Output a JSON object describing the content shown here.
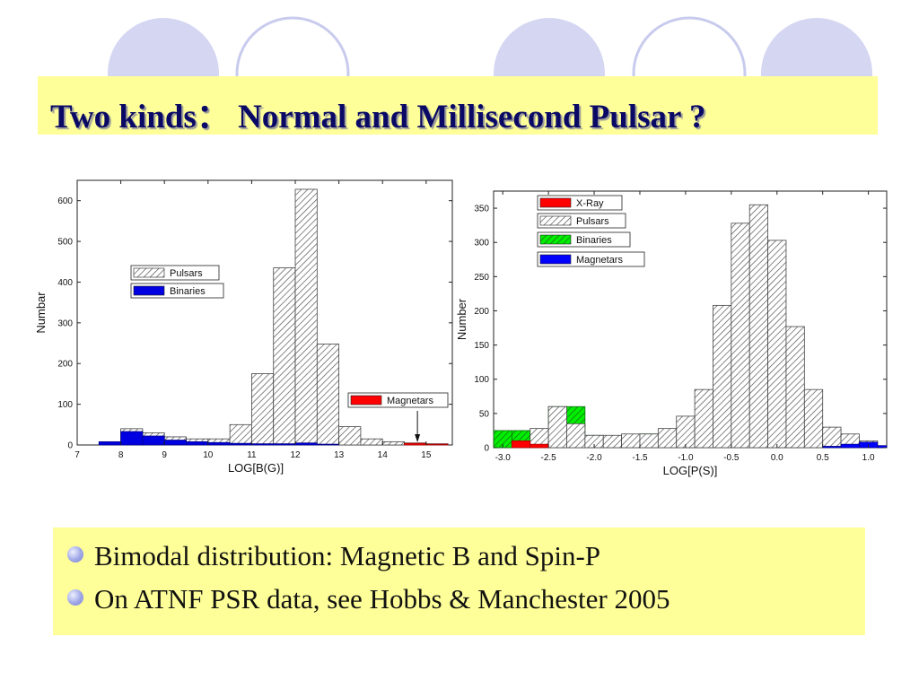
{
  "slide": {
    "title": "Two kinds：  Normal  and Millisecond Pulsar ?",
    "bullets": [
      "Bimodal distribution: Magnetic B and Spin-P",
      "On ATNF PSR  data, see Hobbs & Manchester 2005"
    ]
  },
  "colors": {
    "title_bg": "#ffff99",
    "title_text": "#0a0a66",
    "deco_circle_fill": "#d4d6f2",
    "deco_circle_ring": "#c8cbed",
    "pulsars": "#c8c8c8",
    "binaries_left": "#0000e0",
    "binaries_right": "#00ee00",
    "magnetars": "#0000ff",
    "xray": "#ff0000"
  },
  "chart_data": [
    {
      "type": "bar",
      "xlabel": "LOG[B(G)]",
      "ylabel": "Numbar",
      "xlim": [
        7,
        15.6
      ],
      "ylim": [
        0,
        650
      ],
      "xticks": [
        "7",
        "8",
        "9",
        "10",
        "11",
        "12",
        "13",
        "14",
        "15"
      ],
      "yticks": [
        "0",
        "100",
        "200",
        "300",
        "400",
        "500",
        "600"
      ],
      "bin_width": 0.5,
      "legend": [
        {
          "name": "Pulsars",
          "style": "hatched"
        },
        {
          "name": "Binaries",
          "style": "blue"
        },
        {
          "name": "Magnetars",
          "style": "red"
        }
      ],
      "series": [
        {
          "name": "Pulsars",
          "bin_starts": [
            7.5,
            8.0,
            8.5,
            9.0,
            9.5,
            10.0,
            10.5,
            11.0,
            11.5,
            12.0,
            12.5,
            13.0,
            13.5,
            14.0,
            14.5,
            15.0
          ],
          "values": [
            5,
            40,
            30,
            20,
            15,
            15,
            50,
            175,
            435,
            628,
            248,
            45,
            15,
            8,
            5,
            3
          ]
        },
        {
          "name": "Binaries",
          "bin_starts": [
            7.5,
            8.0,
            8.5,
            9.0,
            9.5,
            10.0,
            10.5,
            11.0,
            11.5,
            12.0,
            12.5
          ],
          "values": [
            8,
            33,
            22,
            12,
            8,
            6,
            4,
            3,
            3,
            5,
            2
          ]
        },
        {
          "name": "Magnetars",
          "bin_starts": [
            14.5,
            15.0
          ],
          "values": [
            4,
            2
          ]
        }
      ]
    },
    {
      "type": "bar",
      "xlabel": "LOG[P(S)]",
      "ylabel": "Number",
      "xlim": [
        -3.1,
        1.2
      ],
      "ylim": [
        0,
        375
      ],
      "xticks": [
        "-3.0",
        "-2.5",
        "-2.0",
        "-1.5",
        "-1.0",
        "-0.5",
        "0.0",
        "0.5",
        "1.0"
      ],
      "yticks": [
        "0",
        "50",
        "100",
        "150",
        "200",
        "250",
        "300",
        "350"
      ],
      "bin_width": 0.2,
      "legend": [
        {
          "name": "X-Ray",
          "style": "red"
        },
        {
          "name": "Pulsars",
          "style": "hatched"
        },
        {
          "name": "Binaries",
          "style": "green"
        },
        {
          "name": "Magnetars",
          "style": "blue"
        }
      ],
      "series": [
        {
          "name": "Binaries",
          "bin_starts": [
            -3.1,
            -2.9,
            -2.7,
            -2.5,
            -2.3,
            -2.1,
            -1.9,
            -1.7,
            -1.5,
            -1.3,
            -1.1,
            -0.9,
            -0.7,
            -0.5,
            -0.3,
            -0.1,
            0.1,
            0.3,
            0.5,
            0.7
          ],
          "values": [
            25,
            25,
            20,
            60,
            60,
            18,
            10,
            15,
            20,
            15,
            15,
            8,
            7,
            7,
            7,
            8,
            3,
            3,
            2,
            1
          ]
        },
        {
          "name": "Pulsars",
          "bin_starts": [
            -2.9,
            -2.7,
            -2.5,
            -2.3,
            -2.1,
            -1.9,
            -1.7,
            -1.5,
            -1.3,
            -1.1,
            -0.9,
            -0.7,
            -0.5,
            -0.3,
            -0.1,
            0.1,
            0.3,
            0.5,
            0.7,
            0.9
          ],
          "values": [
            5,
            28,
            60,
            35,
            18,
            18,
            20,
            20,
            28,
            46,
            85,
            208,
            328,
            355,
            303,
            177,
            85,
            30,
            20,
            10
          ]
        },
        {
          "name": "X-Ray",
          "bin_starts": [
            -2.9,
            -2.7
          ],
          "values": [
            10,
            5
          ]
        },
        {
          "name": "Magnetars",
          "bin_starts": [
            0.5,
            0.7,
            0.9,
            1.1
          ],
          "values": [
            2,
            5,
            8,
            3
          ]
        }
      ]
    }
  ]
}
